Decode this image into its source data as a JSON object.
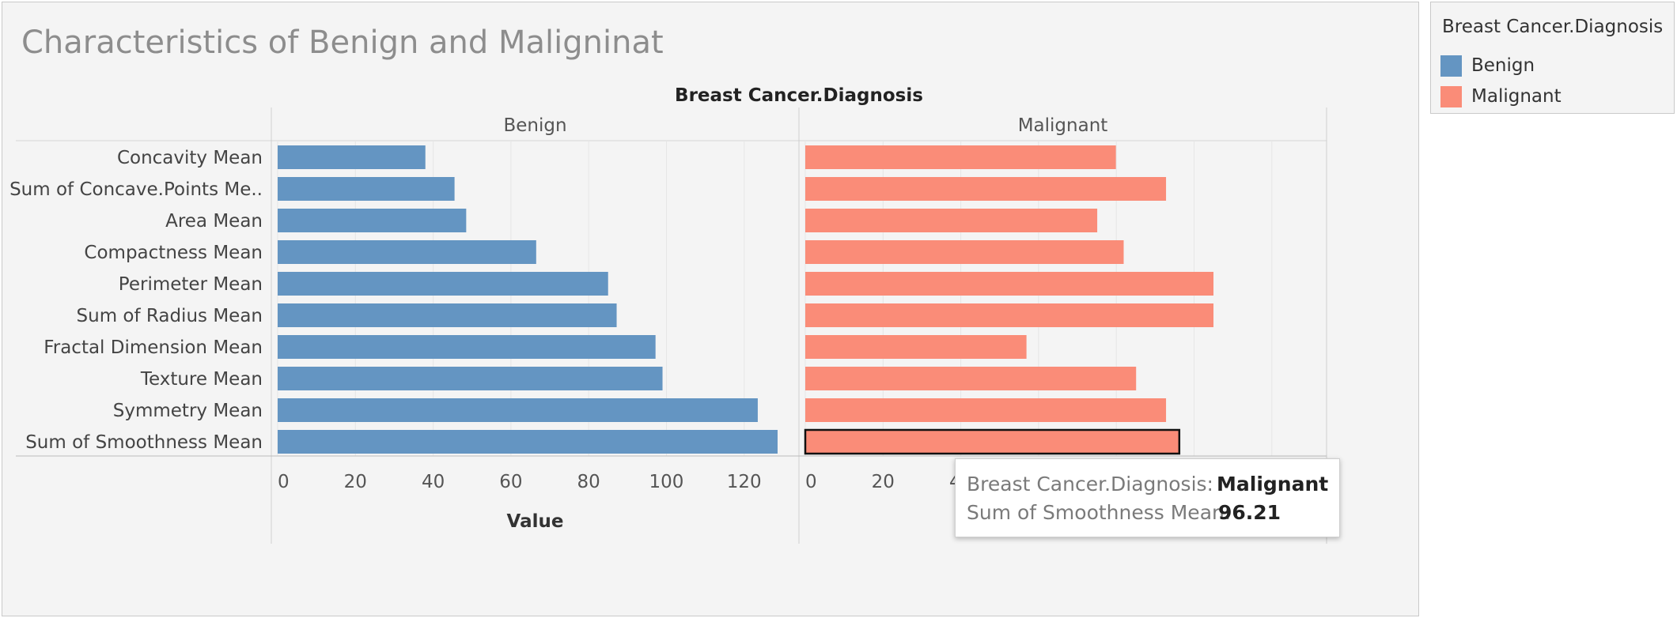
{
  "title": "Characteristics of Benign and Maligninat",
  "legend": {
    "title": "Breast Cancer.Diagnosis",
    "items": [
      {
        "label": "Benign",
        "color": "#6495c2"
      },
      {
        "label": "Malignant",
        "color": "#fa8c78"
      }
    ]
  },
  "tooltip": {
    "key1": "Breast Cancer.Diagnosis:",
    "val1": "Malignant",
    "key2": "Sum of Smoothness Mean:",
    "val2": "96.21"
  },
  "chart_data": {
    "type": "bar",
    "orientation": "horizontal",
    "column_header": "Breast Cancer.Diagnosis",
    "xlabel": "Value",
    "xlim": [
      0,
      135
    ],
    "grid": true,
    "categories": [
      "Concavity Mean",
      "Sum of Concave.Points Me..",
      "Area Mean",
      "Compactness Mean",
      "Perimeter Mean",
      "Sum of Radius Mean",
      "Fractal Dimension Mean",
      "Texture Mean",
      "Symmetry Mean",
      "Sum of Smoothness Mean"
    ],
    "series": [
      {
        "name": "Benign",
        "color": "#6495c2",
        "ticks": [
          0,
          20,
          40,
          60,
          80,
          100,
          120
        ],
        "values": [
          38,
          45.5,
          48.5,
          66.5,
          85,
          87.2,
          97.2,
          99,
          123.5,
          128.6
        ]
      },
      {
        "name": "Malignant",
        "color": "#fa8c78",
        "ticks": [
          0,
          20,
          40
        ],
        "values": [
          79.9,
          92.8,
          75.1,
          81.9,
          105,
          105,
          56.9,
          85.1,
          92.8,
          96.21
        ],
        "highlighted_index": 9
      }
    ]
  }
}
